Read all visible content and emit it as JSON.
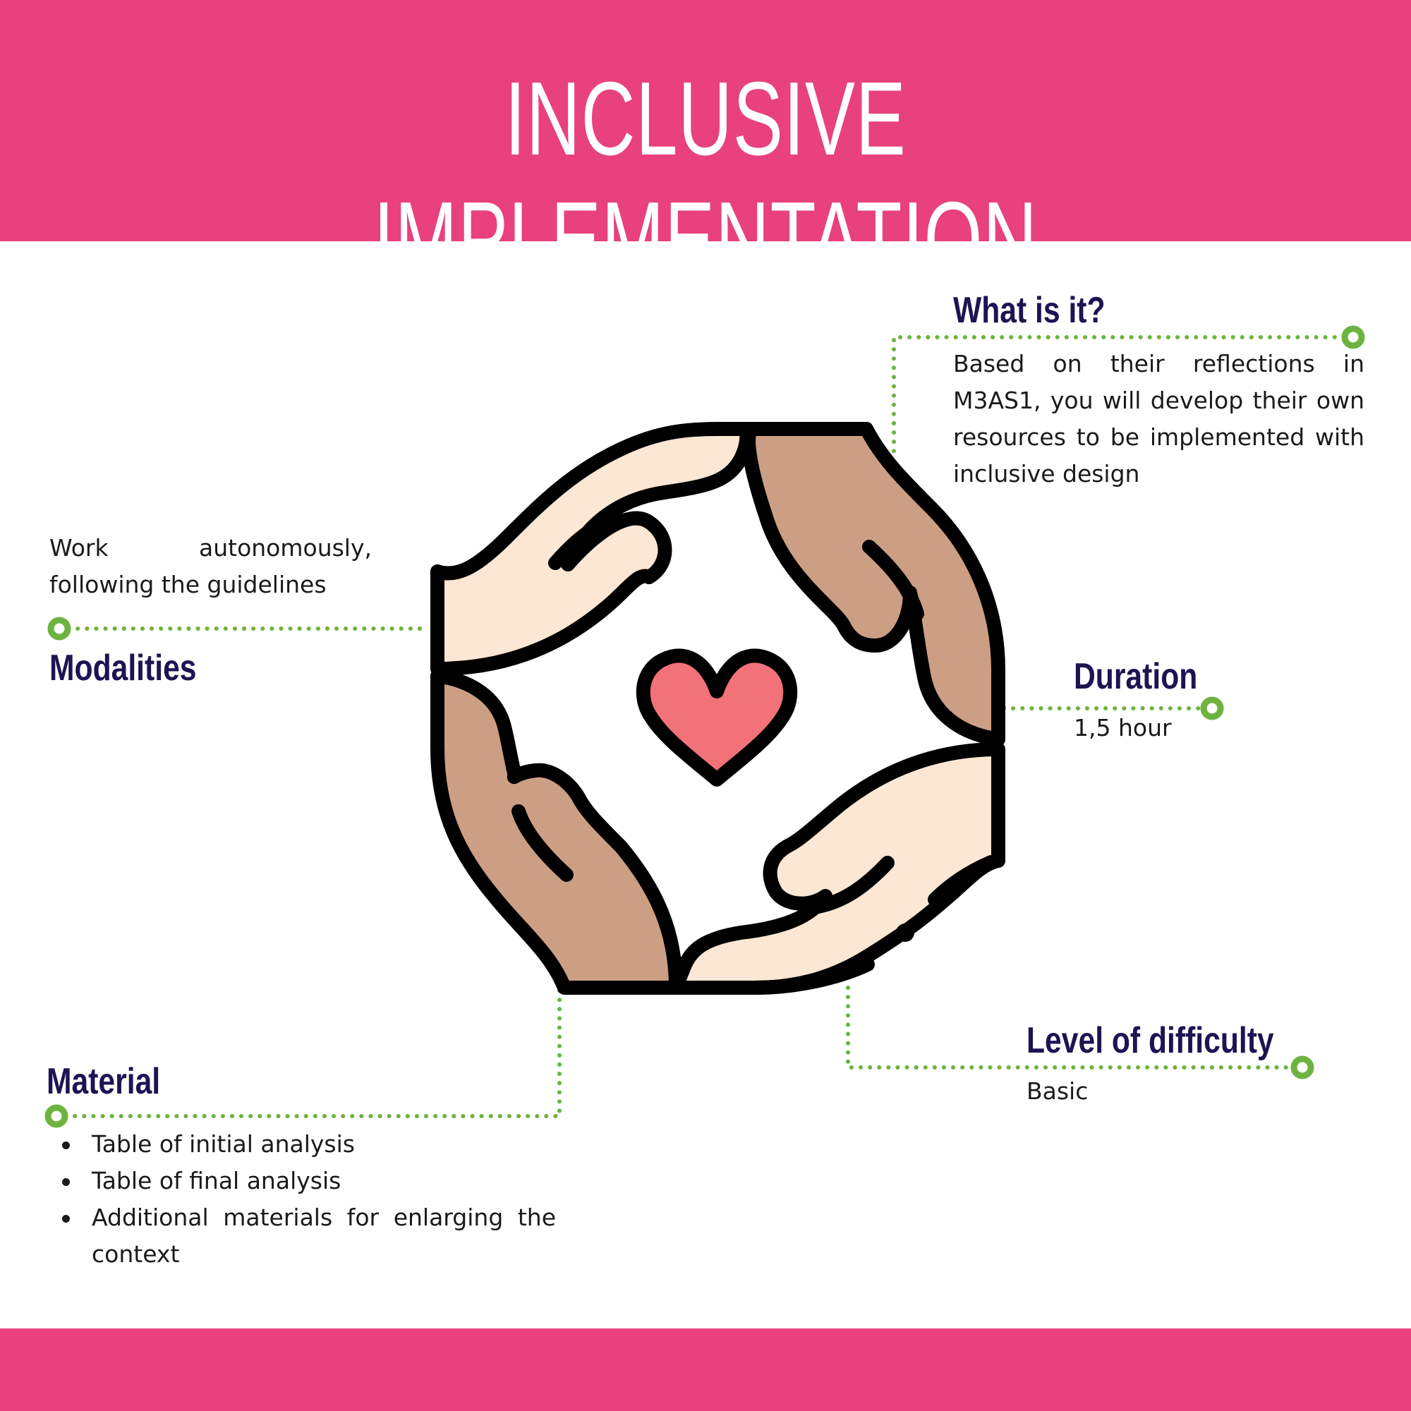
{
  "title": "INCLUSIVE IMPLEMENTATION",
  "colors": {
    "band": "#E8417D",
    "heading": "#1B1553",
    "connector": "#6DB33F",
    "text": "#1a1a1a",
    "hand_light": "#FBE7D3",
    "hand_dark": "#CC9F85",
    "heart": "#F2727A",
    "outline": "#000000"
  },
  "icon": "hands-circle-heart-icon",
  "sections": {
    "what_is_it": {
      "heading": "What is it?",
      "body": "Based on their reflections in M3AS1, you will develop their own resources to be implemented with inclusive design"
    },
    "modalities": {
      "heading": "Modalities",
      "body": "Work autonomously, following the guidelines"
    },
    "duration": {
      "heading": "Duration",
      "body": "1,5 hour"
    },
    "material": {
      "heading": "Material",
      "items": [
        "Table of initial analysis",
        "Table of final analysis",
        "Additional materials for enlarging the context"
      ]
    },
    "level_of_difficulty": {
      "heading": "Level of difficulty",
      "body": "Basic"
    }
  }
}
